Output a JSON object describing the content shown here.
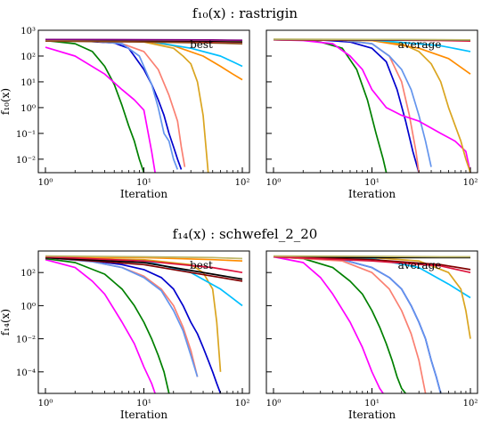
{
  "figures": [
    {
      "title_html": "f₁₀(x) :  rastrigin",
      "ylabel": "f₁₀(x)",
      "yticks": [
        "10⁻²",
        "10⁻¹",
        "10⁰",
        "10¹",
        "10²",
        "10³"
      ],
      "xticks": [
        "10⁰",
        "10¹",
        "10²"
      ]
    },
    {
      "title_html": "f₁₄(x) :  schwefel_2_20",
      "ylabel": "f₁₄(x)",
      "yticks": [
        "10⁻⁴",
        "10⁻²",
        "10⁰",
        "10²"
      ],
      "xticks": [
        "10⁰",
        "10¹",
        "10²"
      ]
    }
  ],
  "chart_data": [
    {
      "type": "line",
      "title": "f10(x): rastrigin (best)",
      "annotation": "best",
      "xlabel": "Iteration",
      "ylabel": "f10(x)",
      "xscale": "log",
      "yscale": "log",
      "xlim": [
        1,
        100
      ],
      "ylim": [
        0.003,
        1000
      ],
      "series": [
        {
          "color": "#008000",
          "x": [
            1,
            2,
            3,
            4,
            5,
            6,
            7,
            8,
            9,
            10
          ],
          "y": [
            400,
            300,
            150,
            40,
            8,
            1.2,
            0.2,
            0.05,
            0.01,
            0.003
          ]
        },
        {
          "color": "#0000cd",
          "x": [
            1,
            2,
            5,
            7,
            8,
            10,
            12,
            14,
            16,
            18,
            20,
            22,
            24
          ],
          "y": [
            420,
            400,
            320,
            200,
            100,
            30,
            8,
            2,
            0.5,
            0.1,
            0.03,
            0.01,
            0.004
          ]
        },
        {
          "color": "#ff00ff",
          "x": [
            1,
            2,
            4,
            6,
            8,
            10,
            12,
            13
          ],
          "y": [
            220,
            100,
            20,
            5,
            2,
            0.8,
            0.02,
            0.003
          ]
        },
        {
          "color": "#fa8072",
          "x": [
            1,
            3,
            6,
            10,
            14,
            18,
            22,
            24,
            26
          ],
          "y": [
            420,
            380,
            300,
            150,
            30,
            3,
            0.3,
            0.03,
            0.005
          ]
        },
        {
          "color": "#6495ed",
          "x": [
            1,
            3,
            6,
            9,
            12,
            14,
            16,
            18,
            20,
            22
          ],
          "y": [
            420,
            380,
            300,
            100,
            8,
            1,
            0.1,
            0.05,
            0.01,
            0.004
          ]
        },
        {
          "color": "#daa520",
          "x": [
            1,
            5,
            10,
            20,
            25,
            30,
            35,
            40,
            45
          ],
          "y": [
            420,
            400,
            350,
            200,
            100,
            50,
            10,
            0.5,
            0.003
          ]
        },
        {
          "color": "#ff8c00",
          "x": [
            1,
            5,
            10,
            20,
            40,
            60,
            80,
            100
          ],
          "y": [
            420,
            400,
            380,
            250,
            100,
            40,
            20,
            12
          ]
        },
        {
          "color": "#00bfff",
          "x": [
            1,
            10,
            30,
            60,
            80,
            100
          ],
          "y": [
            420,
            400,
            200,
            100,
            60,
            40
          ]
        },
        {
          "color": "#dc143c",
          "x": [
            1,
            10,
            50,
            100
          ],
          "y": [
            400,
            380,
            360,
            350
          ]
        },
        {
          "color": "#000000",
          "x": [
            1,
            10,
            50,
            100
          ],
          "y": [
            420,
            400,
            380,
            360
          ]
        },
        {
          "color": "#8b4513",
          "x": [
            1,
            10,
            50,
            100
          ],
          "y": [
            380,
            350,
            320,
            300
          ]
        },
        {
          "color": "#bdb76b",
          "x": [
            1,
            10,
            50,
            100
          ],
          "y": [
            430,
            420,
            410,
            400
          ]
        },
        {
          "color": "#800080",
          "x": [
            1,
            10,
            50,
            100
          ],
          "y": [
            440,
            430,
            420,
            410
          ]
        }
      ]
    },
    {
      "type": "line",
      "title": "f10(x): rastrigin (average)",
      "annotation": "average",
      "xlabel": "Iteration",
      "xscale": "log",
      "yscale": "log",
      "xlim": [
        1,
        100
      ],
      "ylim": [
        0.003,
        1000
      ],
      "series": [
        {
          "color": "#008000",
          "x": [
            1,
            2,
            3,
            5,
            7,
            9,
            11,
            13,
            14
          ],
          "y": [
            430,
            420,
            350,
            200,
            30,
            2,
            0.1,
            0.01,
            0.003
          ]
        },
        {
          "color": "#0000cd",
          "x": [
            1,
            3,
            6,
            10,
            14,
            18,
            22,
            26,
            30
          ],
          "y": [
            430,
            420,
            350,
            200,
            60,
            5,
            0.3,
            0.02,
            0.003
          ]
        },
        {
          "color": "#fa8072",
          "x": [
            1,
            5,
            10,
            15,
            20,
            24,
            28,
            30
          ],
          "y": [
            430,
            410,
            300,
            100,
            10,
            0.5,
            0.02,
            0.003
          ]
        },
        {
          "color": "#6495ed",
          "x": [
            1,
            5,
            10,
            15,
            20,
            25,
            30,
            35,
            40
          ],
          "y": [
            430,
            410,
            300,
            100,
            30,
            5,
            0.5,
            0.05,
            0.005
          ]
        },
        {
          "color": "#ff00ff",
          "x": [
            1,
            2,
            4,
            6,
            8,
            10,
            14,
            20,
            30,
            50,
            70,
            90,
            100
          ],
          "y": [
            430,
            400,
            300,
            100,
            30,
            5,
            1,
            0.5,
            0.3,
            0.1,
            0.05,
            0.02,
            0.003
          ]
        },
        {
          "color": "#daa520",
          "x": [
            1,
            10,
            20,
            30,
            40,
            50,
            60,
            70,
            80,
            90,
            100
          ],
          "y": [
            430,
            400,
            300,
            150,
            50,
            10,
            1,
            0.2,
            0.05,
            0.01,
            0.003
          ]
        },
        {
          "color": "#ff8c00",
          "x": [
            1,
            10,
            30,
            60,
            100
          ],
          "y": [
            430,
            400,
            200,
            80,
            20
          ]
        },
        {
          "color": "#00bfff",
          "x": [
            1,
            10,
            50,
            100
          ],
          "y": [
            430,
            420,
            250,
            150
          ]
        },
        {
          "color": "#dc143c",
          "x": [
            1,
            10,
            50,
            100
          ],
          "y": [
            430,
            420,
            400,
            380
          ]
        },
        {
          "color": "#000000",
          "x": [
            1,
            10,
            50,
            100
          ],
          "y": [
            440,
            430,
            420,
            410
          ]
        },
        {
          "color": "#bdb76b",
          "x": [
            1,
            10,
            50,
            100
          ],
          "y": [
            450,
            440,
            430,
            420
          ]
        }
      ]
    },
    {
      "type": "line",
      "title": "f14(x): schwefel_2_20 (best)",
      "annotation": "best",
      "xlabel": "Iteration",
      "ylabel": "f14(x)",
      "xscale": "log",
      "yscale": "log",
      "xlim": [
        1,
        100
      ],
      "ylim": [
        5e-06,
        2000
      ],
      "series": [
        {
          "color": "#ff00ff",
          "x": [
            1,
            2,
            3,
            4,
            6,
            8,
            10,
            12,
            13
          ],
          "y": [
            600,
            200,
            30,
            5,
            0.1,
            0.005,
            0.0002,
            2e-05,
            5e-06
          ]
        },
        {
          "color": "#008000",
          "x": [
            1,
            2,
            4,
            6,
            8,
            10,
            12,
            14,
            16,
            18
          ],
          "y": [
            700,
            400,
            80,
            10,
            1,
            0.1,
            0.01,
            0.001,
            0.0001,
            5e-06
          ]
        },
        {
          "color": "#0000cd",
          "x": [
            1,
            3,
            6,
            10,
            15,
            20,
            25,
            30,
            35,
            40,
            45,
            50,
            55,
            60
          ],
          "y": [
            800,
            500,
            300,
            150,
            50,
            10,
            1,
            0.1,
            0.02,
            0.003,
            0.0005,
            0.0001,
            2e-05,
            5e-06
          ]
        },
        {
          "color": "#fa8072",
          "x": [
            1,
            3,
            6,
            10,
            15,
            20,
            25,
            30,
            35
          ],
          "y": [
            800,
            450,
            200,
            60,
            10,
            1,
            0.05,
            0.002,
            5e-05
          ]
        },
        {
          "color": "#6495ed",
          "x": [
            1,
            3,
            6,
            10,
            15,
            20,
            25,
            30,
            35
          ],
          "y": [
            800,
            450,
            200,
            50,
            8,
            0.5,
            0.03,
            0.001,
            5e-05
          ]
        },
        {
          "color": "#daa520",
          "x": [
            1,
            10,
            30,
            40,
            50,
            55,
            60
          ],
          "y": [
            800,
            600,
            300,
            100,
            10,
            0.1,
            0.0001
          ]
        },
        {
          "color": "#00bfff",
          "x": [
            1,
            10,
            30,
            60,
            100
          ],
          "y": [
            800,
            500,
            100,
            10,
            1
          ]
        },
        {
          "color": "#800000",
          "x": [
            1,
            10,
            50,
            100
          ],
          "y": [
            800,
            300,
            60,
            30
          ]
        },
        {
          "color": "#000000",
          "x": [
            1,
            10,
            50,
            100
          ],
          "y": [
            800,
            400,
            80,
            40
          ]
        },
        {
          "color": "#ff8c00",
          "x": [
            1,
            10,
            50,
            100
          ],
          "y": [
            900,
            800,
            600,
            500
          ]
        },
        {
          "color": "#dc143c",
          "x": [
            1,
            10,
            50,
            100
          ],
          "y": [
            900,
            500,
            200,
            100
          ]
        },
        {
          "color": "#bdb76b",
          "x": [
            1,
            10,
            50,
            100
          ],
          "y": [
            1000,
            900,
            800,
            700
          ]
        }
      ]
    },
    {
      "type": "line",
      "title": "f14(x): schwefel_2_20 (average)",
      "annotation": "average",
      "xlabel": "Iteration",
      "xscale": "log",
      "yscale": "log",
      "xlim": [
        1,
        100
      ],
      "ylim": [
        5e-06,
        2000
      ],
      "series": [
        {
          "color": "#ff00ff",
          "x": [
            1,
            2,
            3,
            4,
            6,
            8,
            10,
            12,
            13
          ],
          "y": [
            900,
            400,
            50,
            5,
            0.1,
            0.003,
            0.0001,
            1e-05,
            5e-06
          ]
        },
        {
          "color": "#008000",
          "x": [
            1,
            2,
            4,
            6,
            8,
            10,
            12,
            14,
            16,
            18,
            20,
            22
          ],
          "y": [
            900,
            700,
            200,
            30,
            5,
            0.5,
            0.05,
            0.005,
            0.0005,
            5e-05,
            1e-05,
            5e-06
          ]
        },
        {
          "color": "#0000cd",
          "x": [
            1,
            5,
            10,
            15,
            20,
            25,
            30,
            35,
            40,
            45,
            50
          ],
          "y": [
            900,
            600,
            200,
            50,
            10,
            1,
            0.1,
            0.01,
            0.0005,
            5e-05,
            5e-06
          ]
        },
        {
          "color": "#6495ed",
          "x": [
            1,
            5,
            10,
            15,
            20,
            25,
            30,
            35,
            40,
            45,
            50
          ],
          "y": [
            900,
            600,
            200,
            50,
            10,
            1,
            0.1,
            0.01,
            0.0005,
            5e-05,
            5e-06
          ]
        },
        {
          "color": "#fa8072",
          "x": [
            1,
            5,
            10,
            15,
            20,
            25,
            30,
            35
          ],
          "y": [
            900,
            500,
            100,
            10,
            0.5,
            0.02,
            0.0005,
            5e-06
          ]
        },
        {
          "color": "#00bfff",
          "x": [
            1,
            10,
            30,
            60,
            100
          ],
          "y": [
            900,
            700,
            200,
            20,
            3
          ]
        },
        {
          "color": "#daa520",
          "x": [
            1,
            10,
            30,
            60,
            80,
            90,
            100
          ],
          "y": [
            900,
            800,
            500,
            100,
            10,
            0.5,
            0.01
          ]
        },
        {
          "color": "#000000",
          "x": [
            1,
            10,
            50,
            100
          ],
          "y": [
            900,
            800,
            800,
            800
          ]
        },
        {
          "color": "#800000",
          "x": [
            1,
            10,
            50,
            100
          ],
          "y": [
            900,
            600,
            300,
            150
          ]
        },
        {
          "color": "#dc143c",
          "x": [
            1,
            10,
            50,
            100
          ],
          "y": [
            900,
            500,
            250,
            100
          ]
        },
        {
          "color": "#bdb76b",
          "x": [
            1,
            10,
            50,
            100
          ],
          "y": [
            1000,
            950,
            900,
            900
          ]
        }
      ]
    }
  ]
}
